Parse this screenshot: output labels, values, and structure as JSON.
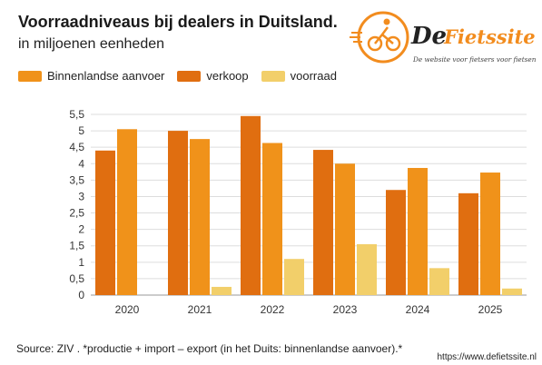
{
  "header": {
    "title": "Voorraadniveaus bij dealers in Duitsland.",
    "subtitle": "in miljoenen eenheden"
  },
  "logo": {
    "text_prefix": "De",
    "text_main": "Fietssite.nl",
    "tagline": "De website voor fietsers voor fietsen.",
    "icon": "cyclist-icon"
  },
  "colors": {
    "binnenlandse": "#F0921A",
    "verkoop": "#E06E10",
    "voorraad": "#F2CF6A",
    "logo_orange": "#F28C1E",
    "grid": "#dddddd"
  },
  "chart_data": {
    "type": "bar",
    "categories": [
      "2020",
      "2021",
      "2022",
      "2023",
      "2024",
      "2025"
    ],
    "series": [
      {
        "name": "Binnenlandse aanvoer",
        "values": [
          4.4,
          5.0,
          5.45,
          4.42,
          3.2,
          3.1
        ]
      },
      {
        "name": "verkoop",
        "values": [
          5.05,
          4.75,
          4.63,
          4.0,
          3.87,
          3.73
        ]
      },
      {
        "name": "voorraad",
        "values": [
          0.0,
          0.25,
          1.1,
          1.55,
          0.82,
          0.2
        ]
      }
    ],
    "series_colors": [
      "#E06E10",
      "#F0921A",
      "#F2CF6A"
    ],
    "ylim": [
      0,
      5.5
    ],
    "yticks": [
      "0",
      "0,5",
      "1",
      "1,5",
      "2",
      "2,5",
      "3",
      "3,5",
      "4",
      "4,5",
      "5",
      "5,5"
    ],
    "ytick_values": [
      0,
      0.5,
      1,
      1.5,
      2,
      2.5,
      3,
      3.5,
      4,
      4.5,
      5,
      5.5
    ],
    "grid": true,
    "legend_position": "top-left",
    "title": "Voorraadniveaus bij dealers in Duitsland.",
    "xlabel": "",
    "ylabel": ""
  },
  "legend": [
    {
      "label": "Binnenlandse aanvoer",
      "color": "#F0921A"
    },
    {
      "label": "verkoop",
      "color": "#E06E10"
    },
    {
      "label": "voorraad",
      "color": "#F2CF6A"
    }
  ],
  "footer": {
    "source": "Source: ZIV  .  *productie + import – export (in het Duits: binnenlandse aanvoer).*",
    "url": "https://www.defietssite.nl"
  }
}
